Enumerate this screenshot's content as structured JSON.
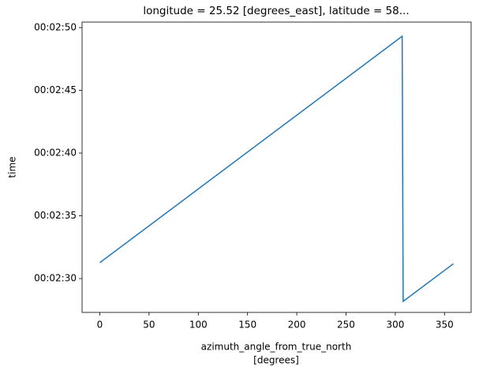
{
  "chart_data": {
    "type": "line",
    "title": "longitude = 25.52 [degrees_east], latitude = 58...",
    "xlabel": [
      "azimuth_angle_from_true_north",
      "[degrees]"
    ],
    "ylabel": "time",
    "x": [
      0,
      307,
      308,
      359
    ],
    "series": [
      {
        "color": "#1f77b4",
        "values": [
          151.26,
          169.31,
          148.18,
          151.18
        ]
      }
    ],
    "xlim": [
      -18,
      377
    ],
    "xticks": [
      0,
      50,
      100,
      150,
      200,
      250,
      300,
      350
    ],
    "ylim": [
      147.3,
      170.44
    ],
    "yticks": [
      {
        "value": 150,
        "label": "00:02:30"
      },
      {
        "value": 155,
        "label": "00:02:35"
      },
      {
        "value": 160,
        "label": "00:02:40"
      },
      {
        "value": 165,
        "label": "00:02:45"
      },
      {
        "value": 170,
        "label": "00:02:50"
      }
    ]
  }
}
